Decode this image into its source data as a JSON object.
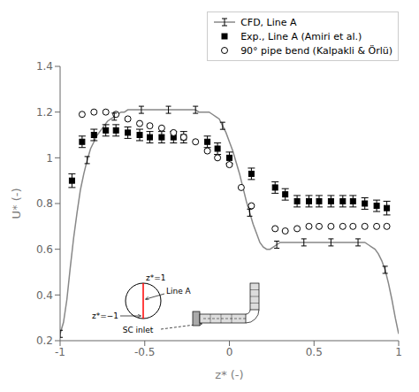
{
  "chart_data": {
    "type": "line",
    "xlabel": "z* (-)",
    "ylabel": "U* (-)",
    "xlim": [
      -1,
      1
    ],
    "ylim": [
      0.2,
      1.4
    ],
    "xticks": [
      -1,
      -0.5,
      0,
      0.5,
      1
    ],
    "yticks": [
      0.2,
      0.4,
      0.6,
      0.8,
      1,
      1.2,
      1.4
    ],
    "grid": false,
    "legend": "upper right",
    "series": [
      {
        "name": "CFD, Line A",
        "type": "line",
        "color": "#888888",
        "marker": "ibar",
        "x": [
          -1.0,
          -0.98,
          -0.96,
          -0.94,
          -0.92,
          -0.9,
          -0.88,
          -0.86,
          -0.84,
          -0.82,
          -0.8,
          -0.78,
          -0.76,
          -0.74,
          -0.72,
          -0.7,
          -0.68,
          -0.66,
          -0.64,
          -0.62,
          -0.6,
          -0.58,
          -0.56,
          -0.54,
          -0.52,
          -0.5,
          -0.48,
          -0.46,
          -0.44,
          -0.42,
          -0.4,
          -0.38,
          -0.36,
          -0.34,
          -0.32,
          -0.3,
          -0.28,
          -0.26,
          -0.24,
          -0.22,
          -0.2,
          -0.18,
          -0.16,
          -0.14,
          -0.12,
          -0.1,
          -0.08,
          -0.06,
          -0.04,
          -0.02,
          0.0,
          0.02,
          0.04,
          0.06,
          0.08,
          0.1,
          0.12,
          0.14,
          0.16,
          0.18,
          0.2,
          0.22,
          0.24,
          0.26,
          0.28,
          0.3,
          0.32,
          0.34,
          0.36,
          0.38,
          0.4,
          0.42,
          0.44,
          0.46,
          0.48,
          0.5,
          0.52,
          0.54,
          0.56,
          0.58,
          0.6,
          0.62,
          0.64,
          0.66,
          0.68,
          0.7,
          0.72,
          0.74,
          0.76,
          0.78,
          0.8,
          0.82,
          0.84,
          0.86,
          0.88,
          0.9,
          0.92,
          0.94,
          0.96,
          0.98,
          1.0
        ],
        "values": [
          0.23,
          0.28,
          0.38,
          0.52,
          0.65,
          0.76,
          0.86,
          0.93,
          0.99,
          1.04,
          1.07,
          1.1,
          1.12,
          1.14,
          1.16,
          1.17,
          1.18,
          1.19,
          1.2,
          1.2,
          1.21,
          1.21,
          1.21,
          1.21,
          1.21,
          1.21,
          1.21,
          1.21,
          1.21,
          1.21,
          1.21,
          1.21,
          1.21,
          1.21,
          1.21,
          1.21,
          1.21,
          1.21,
          1.21,
          1.21,
          1.21,
          1.2,
          1.2,
          1.2,
          1.2,
          1.19,
          1.18,
          1.17,
          1.14,
          1.11,
          1.07,
          1.03,
          0.98,
          0.93,
          0.87,
          0.81,
          0.76,
          0.71,
          0.67,
          0.63,
          0.61,
          0.6,
          0.6,
          0.61,
          0.62,
          0.63,
          0.63,
          0.63,
          0.63,
          0.63,
          0.63,
          0.63,
          0.63,
          0.63,
          0.63,
          0.63,
          0.63,
          0.63,
          0.63,
          0.63,
          0.63,
          0.63,
          0.63,
          0.63,
          0.63,
          0.63,
          0.63,
          0.63,
          0.63,
          0.63,
          0.63,
          0.62,
          0.61,
          0.6,
          0.58,
          0.55,
          0.51,
          0.45,
          0.38,
          0.3,
          0.23
        ]
      },
      {
        "name": "Exp., Line A (Amiri et al.)",
        "type": "scatter",
        "color": "#000000",
        "marker": "square",
        "x": [
          -0.93,
          -0.87,
          -0.8,
          -0.73,
          -0.67,
          -0.6,
          -0.53,
          -0.47,
          -0.4,
          -0.33,
          -0.27,
          -0.13,
          -0.07,
          0.0,
          0.13,
          0.27,
          0.33,
          0.4,
          0.47,
          0.53,
          0.6,
          0.67,
          0.73,
          0.8,
          0.87,
          0.93
        ],
        "values": [
          0.9,
          1.07,
          1.1,
          1.12,
          1.12,
          1.11,
          1.1,
          1.09,
          1.09,
          1.09,
          1.09,
          1.07,
          1.04,
          1.0,
          0.93,
          0.87,
          0.84,
          0.81,
          0.81,
          0.81,
          0.81,
          0.81,
          0.81,
          0.8,
          0.79,
          0.78
        ],
        "error": [
          0.03,
          0.025,
          0.025,
          0.025,
          0.025,
          0.025,
          0.025,
          0.025,
          0.025,
          0.025,
          0.025,
          0.025,
          0.025,
          0.025,
          0.025,
          0.025,
          0.025,
          0.025,
          0.025,
          0.025,
          0.025,
          0.025,
          0.025,
          0.025,
          0.025,
          0.03
        ]
      },
      {
        "name": "90° pipe bend (Kalpakli & Örlü)",
        "type": "scatter",
        "color": "#000000",
        "marker": "open_circle",
        "x": [
          -0.87,
          -0.8,
          -0.73,
          -0.67,
          -0.6,
          -0.53,
          -0.47,
          -0.4,
          -0.33,
          -0.27,
          -0.2,
          -0.13,
          -0.07,
          0.0,
          0.07,
          0.13,
          0.27,
          0.33,
          0.4,
          0.47,
          0.53,
          0.6,
          0.67,
          0.73,
          0.8,
          0.87,
          0.93
        ],
        "values": [
          1.19,
          1.2,
          1.2,
          1.19,
          1.17,
          1.15,
          1.14,
          1.13,
          1.11,
          1.09,
          1.07,
          1.03,
          1.0,
          0.97,
          0.87,
          0.79,
          0.69,
          0.68,
          0.69,
          0.7,
          0.7,
          0.7,
          0.7,
          0.7,
          0.7,
          0.7,
          0.7
        ]
      }
    ],
    "annotations": [
      "z*=1",
      "z*=−1",
      "Line A",
      "SC inlet"
    ]
  }
}
